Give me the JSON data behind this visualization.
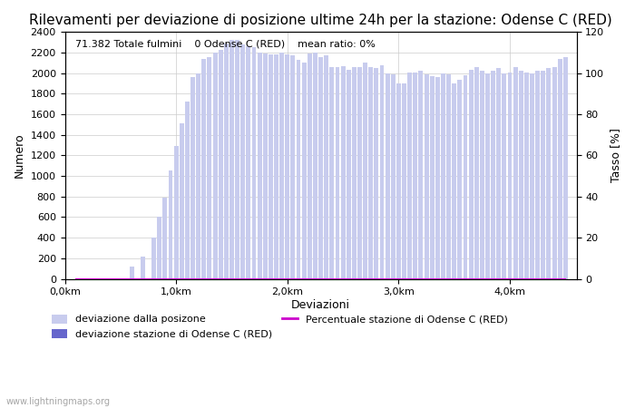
{
  "title": "Rilevamenti per deviazione di posizione ultime 24h per la stazione: Odense C (RED)",
  "xlabel": "Deviazioni",
  "ylabel_left": "Numero",
  "ylabel_right": "Tasso [%]",
  "annotation": "71.382 Totale fulmini    0 Odense C (RED)    mean ratio: 0%",
  "watermark": "www.lightningmaps.org",
  "ylim_left": [
    0,
    2400
  ],
  "ylim_right": [
    0,
    120
  ],
  "yticks_left": [
    0,
    200,
    400,
    600,
    800,
    1000,
    1200,
    1400,
    1600,
    1800,
    2000,
    2200,
    2400
  ],
  "yticks_right": [
    0,
    20,
    40,
    60,
    80,
    100,
    120
  ],
  "xtick_labels": [
    "0,0km",
    "1,0km",
    "2,0km",
    "3,0km",
    "4,0km"
  ],
  "bar_positions": [
    0.1,
    0.2,
    0.3,
    0.4,
    0.5,
    0.6,
    0.65,
    0.7,
    0.75,
    0.8,
    0.85,
    0.9,
    0.95,
    1.0,
    1.05,
    1.1,
    1.15,
    1.2,
    1.25,
    1.3,
    1.35,
    1.4,
    1.45,
    1.5,
    1.55,
    1.6,
    1.65,
    1.7,
    1.75,
    1.8,
    1.85,
    1.9,
    1.95,
    2.0,
    2.05,
    2.1,
    2.15,
    2.2,
    2.25,
    2.3,
    2.35,
    2.4,
    2.45,
    2.5,
    2.55,
    2.6,
    2.65,
    2.7,
    2.75,
    2.8,
    2.85,
    2.9,
    2.95,
    3.0,
    3.05,
    3.1,
    3.15,
    3.2,
    3.25,
    3.3,
    3.35,
    3.4,
    3.45,
    3.5,
    3.55,
    3.6,
    3.65,
    3.7,
    3.75,
    3.8,
    3.85,
    3.9,
    3.95,
    4.0,
    4.05,
    4.1,
    4.15,
    4.2,
    4.25,
    4.3,
    4.35,
    4.4,
    4.45,
    4.5
  ],
  "bar_heights": [
    0,
    0,
    0,
    0,
    0,
    120,
    0,
    220,
    0,
    400,
    600,
    790,
    1050,
    1290,
    1510,
    1720,
    1960,
    2000,
    2140,
    2160,
    2200,
    2230,
    2290,
    2320,
    2320,
    2280,
    2260,
    2250,
    2200,
    2190,
    2180,
    2180,
    2200,
    2180,
    2170,
    2130,
    2100,
    2190,
    2200,
    2160,
    2170,
    2060,
    2060,
    2070,
    2030,
    2060,
    2060,
    2100,
    2060,
    2050,
    2080,
    2000,
    1990,
    1900,
    1900,
    2010,
    2010,
    2020,
    1990,
    1970,
    1960,
    2000,
    1990,
    1900,
    1940,
    1980,
    2030,
    2060,
    2020,
    2000,
    2020,
    2050,
    2000,
    2010,
    2060,
    2020,
    2010,
    2000,
    2020,
    2020,
    2050,
    2060,
    2140,
    2160
  ],
  "station_bar_heights": [
    0,
    0,
    0,
    0,
    0,
    0,
    0,
    0,
    0,
    0,
    0,
    0,
    0,
    0,
    0,
    0,
    0,
    0,
    0,
    0,
    0,
    0,
    0,
    0,
    0,
    0,
    0,
    0,
    0,
    0,
    0,
    0,
    0,
    0,
    0,
    0,
    0,
    0,
    0,
    0,
    0,
    0,
    0,
    0,
    0,
    0,
    0,
    0,
    0,
    0,
    0,
    0,
    0,
    0,
    0,
    0,
    0,
    0,
    0,
    0,
    0,
    0,
    0,
    0,
    0,
    0,
    0,
    0,
    0,
    0,
    0,
    0,
    0,
    0,
    0,
    0,
    0,
    0,
    0,
    0,
    0,
    0,
    0,
    0
  ],
  "percentage_line": [
    0,
    0,
    0,
    0,
    0,
    0,
    0,
    0,
    0,
    0,
    0,
    0,
    0,
    0,
    0,
    0,
    0,
    0,
    0,
    0,
    0,
    0,
    0,
    0,
    0,
    0,
    0,
    0,
    0,
    0,
    0,
    0,
    0,
    0,
    0,
    0,
    0,
    0,
    0,
    0,
    0,
    0,
    0,
    0,
    0,
    0,
    0,
    0,
    0,
    0,
    0,
    0,
    0,
    0,
    0,
    0,
    0,
    0,
    0,
    0,
    0,
    0,
    0,
    0,
    0,
    0,
    0,
    0,
    0,
    0,
    0,
    0,
    0,
    0,
    0,
    0,
    0,
    0,
    0,
    0,
    0,
    0,
    0,
    0
  ],
  "bar_color_light": "#c8ccee",
  "bar_color_dark": "#6666cc",
  "line_color": "#cc00cc",
  "bg_color": "#ffffff",
  "grid_color": "#cccccc",
  "tick_label_fontsize": 8,
  "axis_label_fontsize": 9,
  "title_fontsize": 11,
  "annotation_fontsize": 8,
  "legend_fontsize": 8,
  "bar_width": 0.04,
  "xmin": 0.0,
  "xmax": 4.6,
  "xtick_positions": [
    0.0,
    1.0,
    2.0,
    3.0,
    4.0
  ]
}
